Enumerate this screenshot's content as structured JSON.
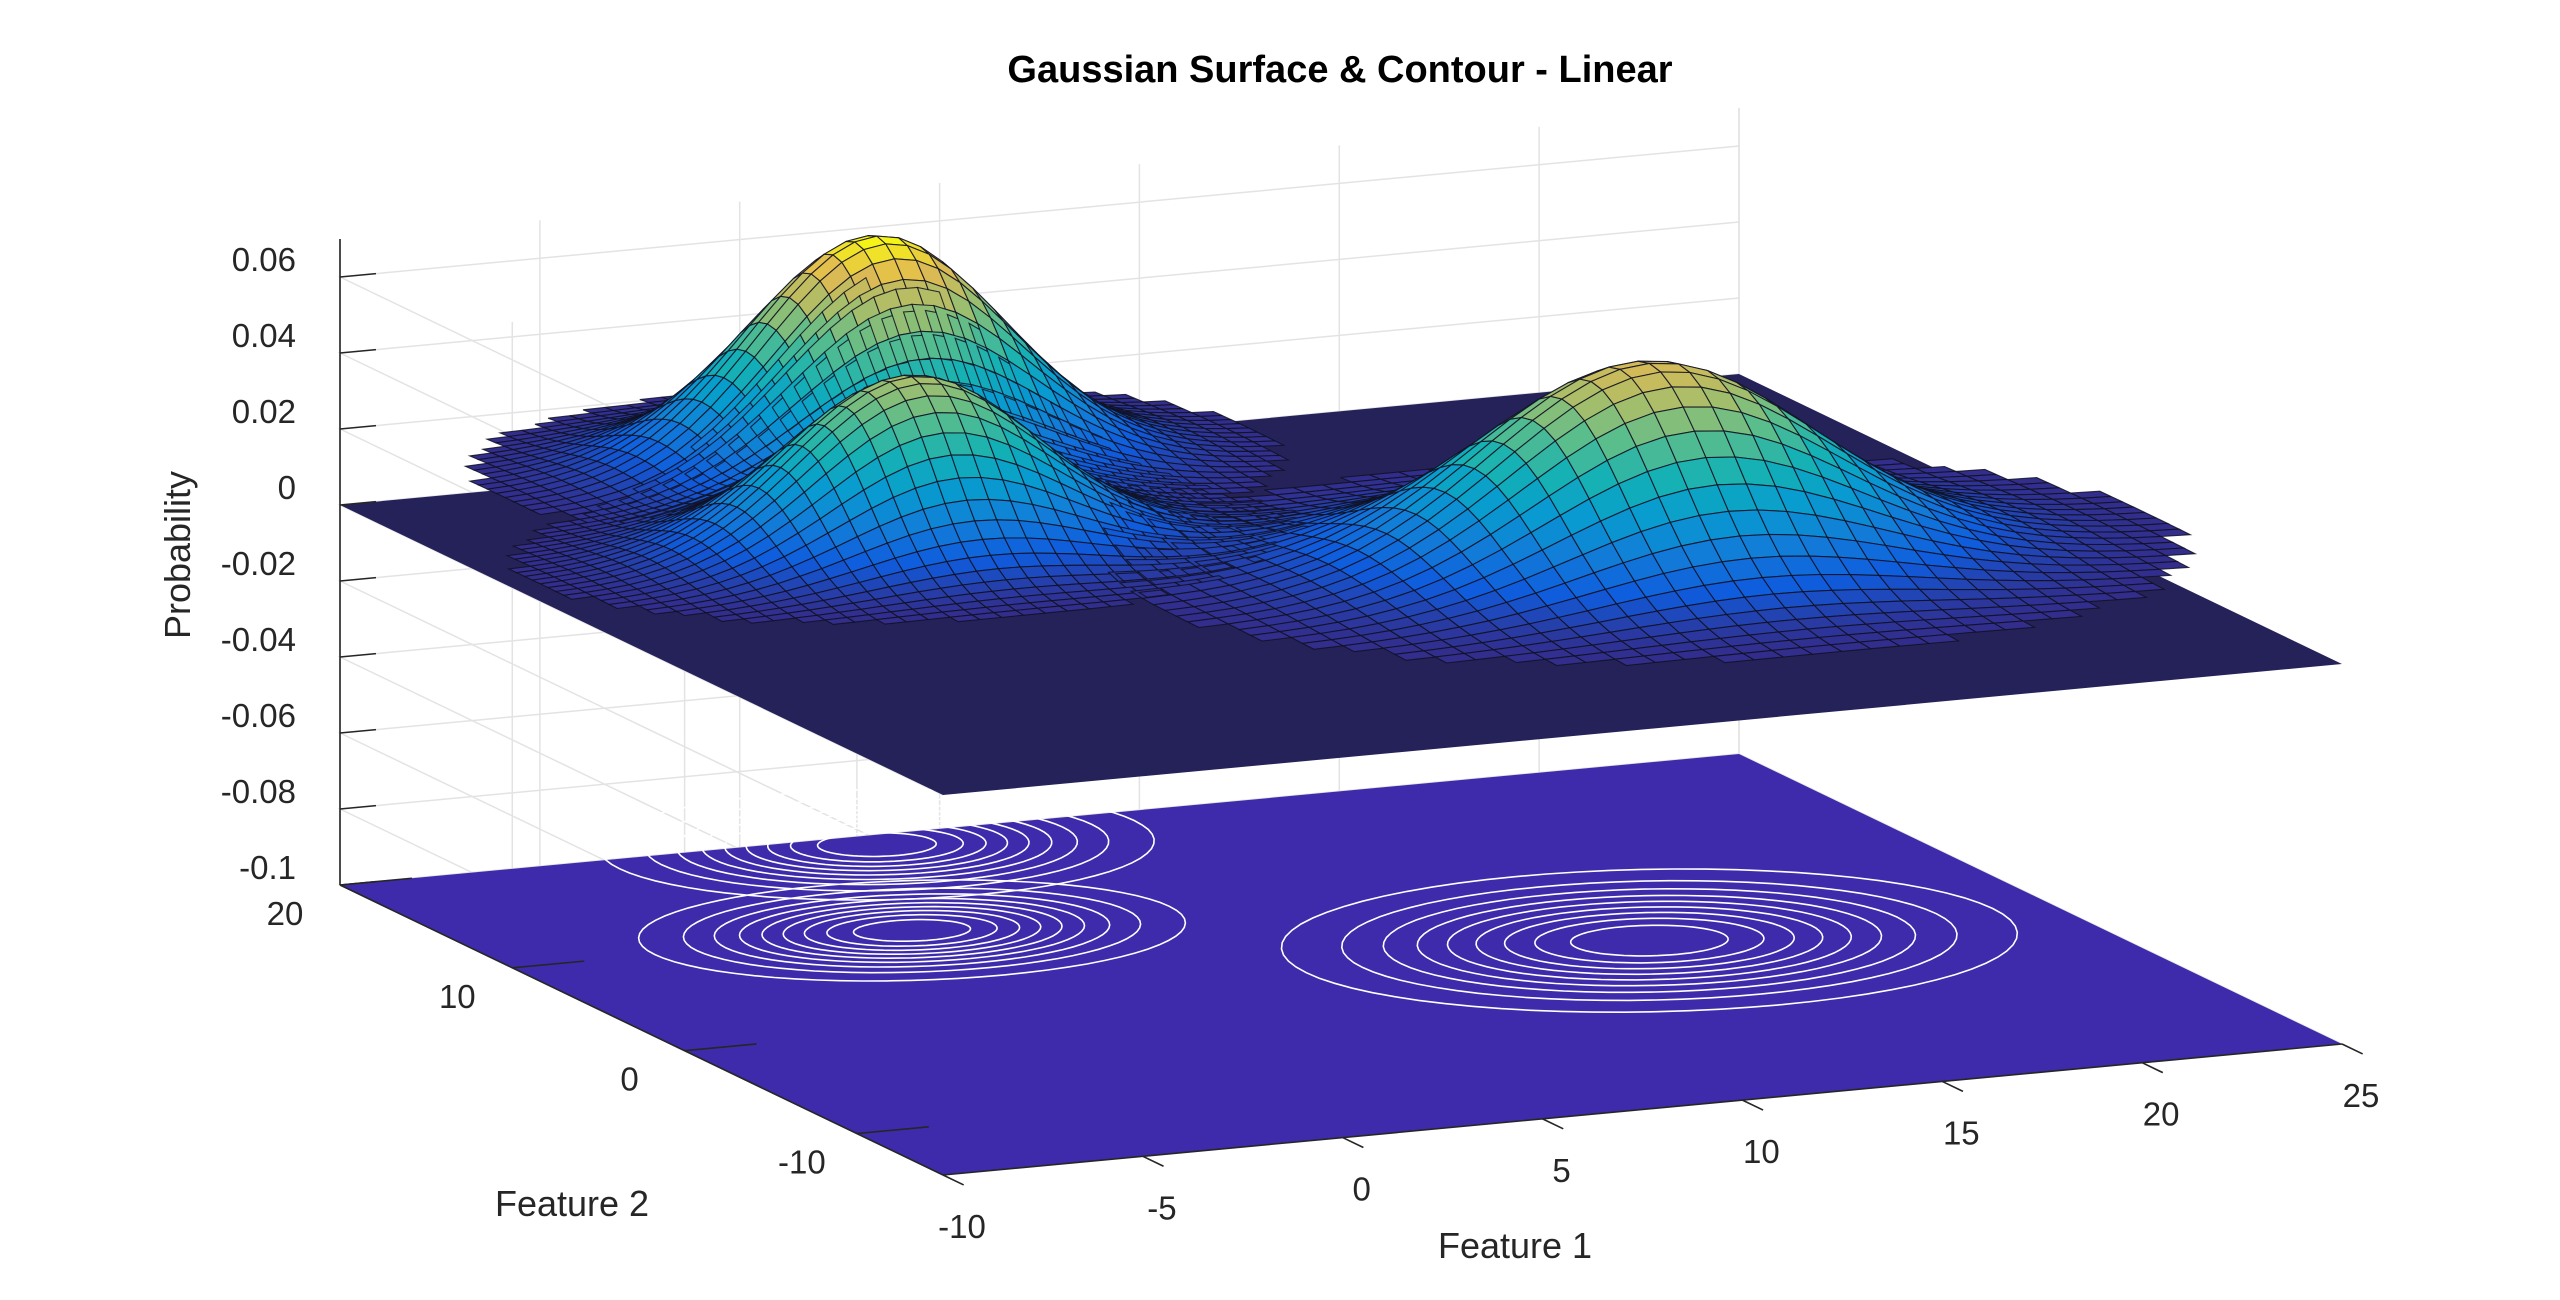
{
  "figure": {
    "title": "Gaussian Surface & Contour - Linear"
  },
  "chart_data": {
    "type": "surface",
    "title": "Gaussian Surface & Contour - Linear",
    "xlabel": "Feature 1",
    "ylabel": "Feature 2",
    "zlabel": "Probability",
    "xlim": [
      -10,
      25
    ],
    "ylim": [
      -15,
      20
    ],
    "zlim": [
      -0.1,
      0.07
    ],
    "x_ticks": [
      -10,
      -5,
      0,
      5,
      10,
      15,
      20,
      25
    ],
    "y_ticks": [
      -10,
      0,
      10,
      20
    ],
    "z_ticks": [
      -0.1,
      -0.08,
      -0.06,
      -0.04,
      -0.02,
      0,
      0.02,
      0.04,
      0.06
    ],
    "x_tick_labels": [
      "-10",
      "-5",
      "0",
      "5",
      "10",
      "15",
      "20",
      "25"
    ],
    "y_tick_labels": [
      "-10",
      "0",
      "10",
      "20"
    ],
    "z_tick_labels": [
      "-0.1",
      "-0.08",
      "-0.06",
      "-0.04",
      "-0.02",
      "0",
      "0.02",
      "0.04",
      "0.06"
    ],
    "grid": true,
    "colormap": "parula",
    "contour_plane_z": -0.1,
    "surface_base_z": 0,
    "components": [
      {
        "mean_x": 0,
        "mean_y": 10,
        "sigma_x": 3.0,
        "sigma_y": 2.5,
        "peak": 0.0455
      },
      {
        "mean_x": 3,
        "mean_y": 19,
        "sigma_x": 3.0,
        "sigma_y": 2.8,
        "peak": 0.0601
      },
      {
        "mean_x": 15,
        "mean_y": 2,
        "sigma_x": 4.0,
        "sigma_y": 3.6,
        "peak": 0.0519
      }
    ],
    "colors": {
      "low": "#352a87",
      "contour_plane": "#3d2bab",
      "surface_base": "#25225a",
      "high": "#f9fb0e"
    }
  }
}
